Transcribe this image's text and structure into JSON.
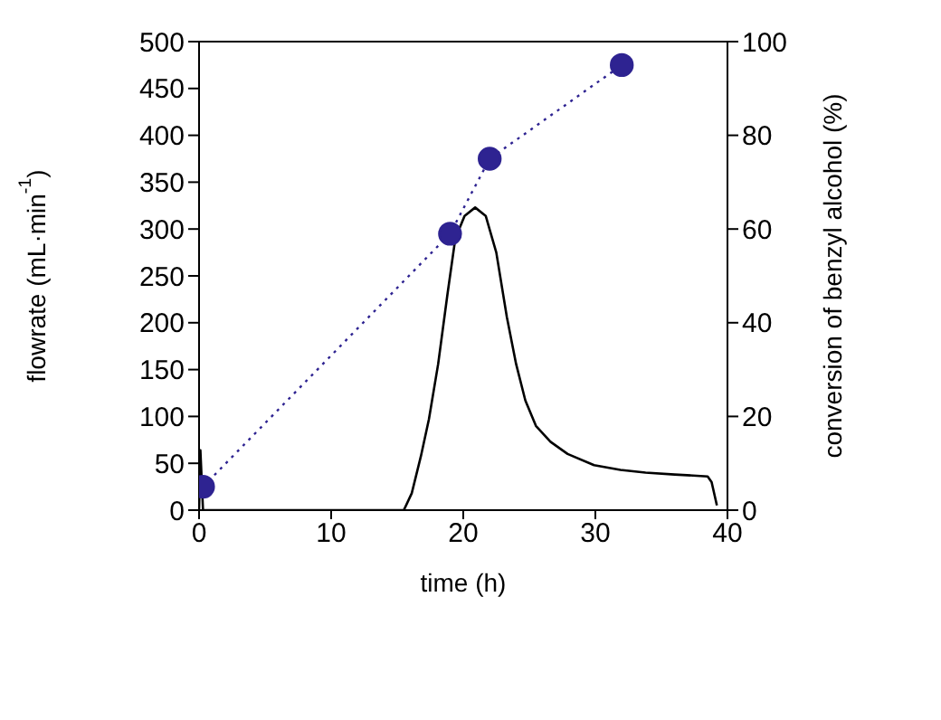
{
  "chart_data": {
    "type": "line",
    "xlabel": "time (h)",
    "ylabel": "flowrate (mL·min$^{-1}$)",
    "y2label": "conversion of benzyl alcohol (%)",
    "xlim": [
      0,
      40
    ],
    "xticks": [
      0,
      10,
      20,
      30,
      40
    ],
    "ylim": [
      0,
      500
    ],
    "yticks": [
      0,
      50,
      100,
      150,
      200,
      250,
      300,
      350,
      400,
      450,
      500
    ],
    "y2lim": [
      0,
      100
    ],
    "y2ticks": [
      0,
      20,
      40,
      60,
      80,
      100
    ],
    "series": [
      {
        "color": "#000000",
        "marker": "none",
        "line_style": "solid",
        "x": [
          0,
          0.1,
          0.3,
          5,
          10,
          15,
          15.5,
          16.1,
          16.8,
          17.4,
          18.1,
          18.8,
          19.4,
          20.1,
          20.9,
          21.7,
          22.5,
          23.3,
          24,
          24.7,
          25.5,
          26.6,
          27.9,
          29.9,
          31.9,
          33.8,
          36,
          38.5,
          38.8,
          39.2
        ],
        "values": [
          0,
          64,
          0,
          0,
          0,
          0,
          0,
          18,
          58,
          97,
          156,
          230,
          290,
          314,
          323,
          314,
          275,
          206,
          156,
          117,
          90,
          73,
          60,
          48,
          43,
          40,
          38,
          36,
          30,
          5
        ]
      },
      {
        "color": "#2e2391",
        "marker": "circle",
        "line_style": "dotted",
        "axis": "y2",
        "x": [
          0.3,
          19,
          22,
          32
        ],
        "values": [
          5,
          59,
          75,
          95
        ]
      }
    ]
  }
}
